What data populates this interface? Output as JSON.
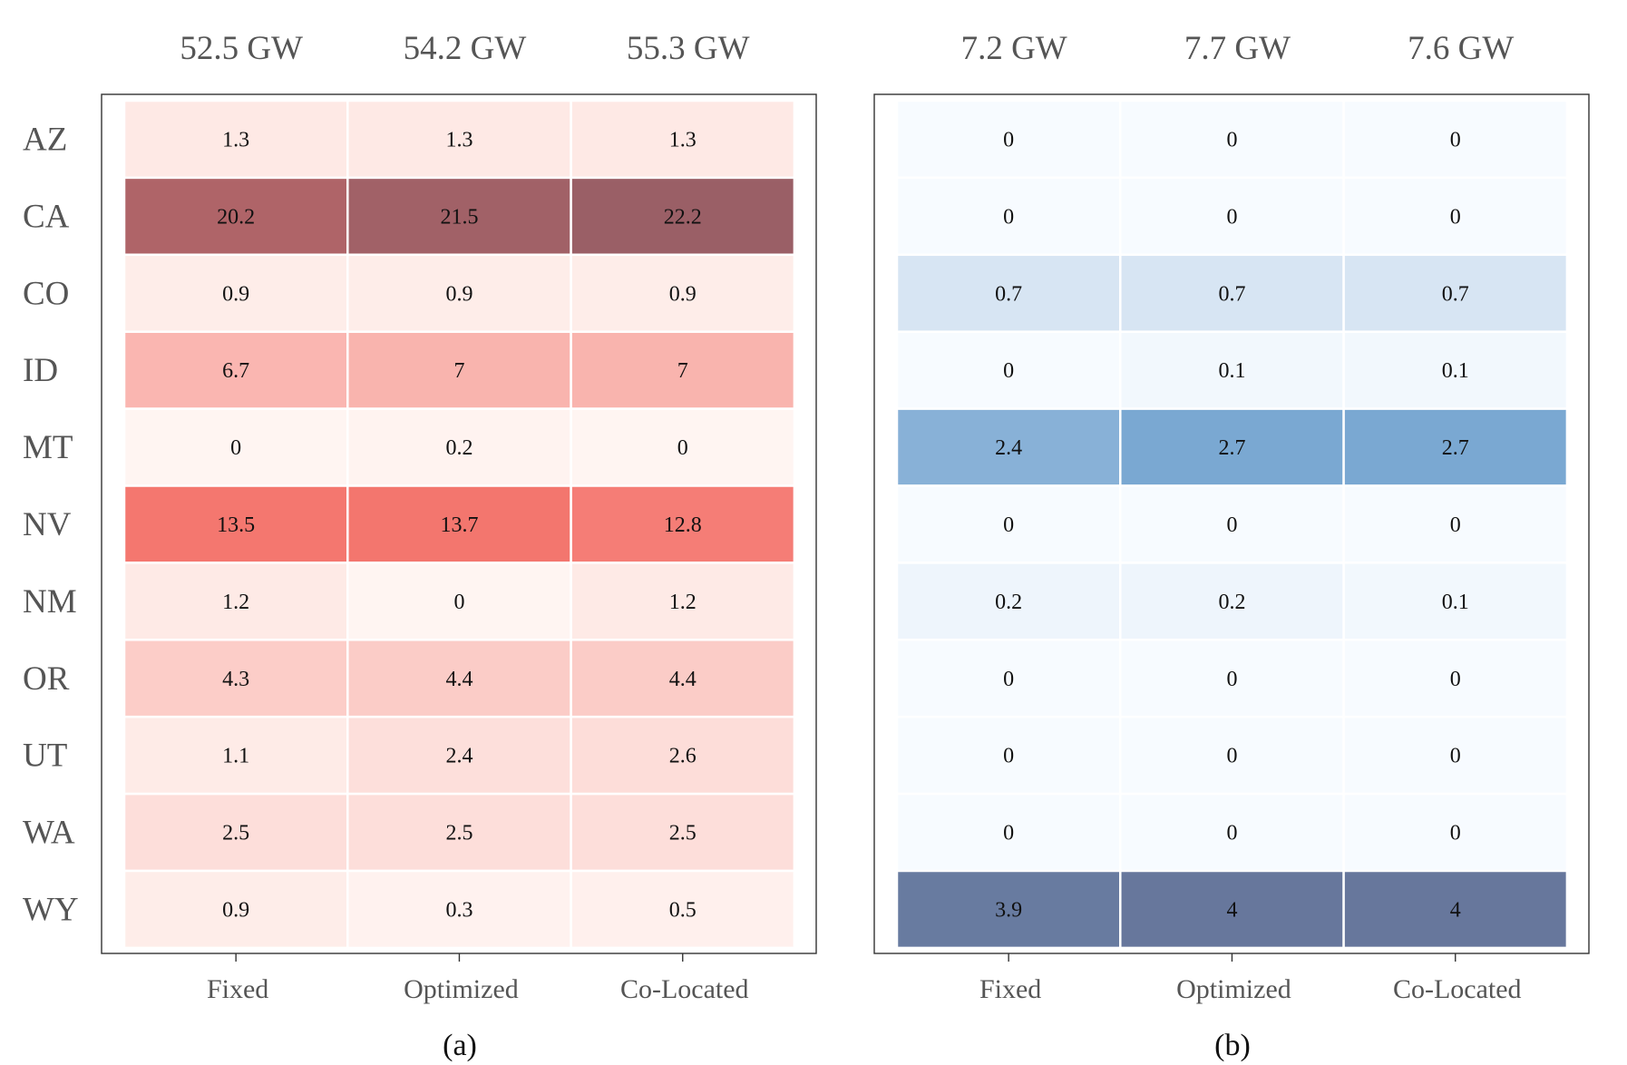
{
  "chart_data": [
    {
      "type": "heatmap",
      "panel": "a",
      "caption": "(a)",
      "color_scale": {
        "low": "#fff5f2",
        "mid": "#f4766e",
        "high": "#9a5f66",
        "mid_value": 13.6
      },
      "columns": [
        "Fixed",
        "Optimized",
        "Co-Located"
      ],
      "column_totals": [
        "52.5 GW",
        "54.2 GW",
        "55.3 GW"
      ],
      "rows": [
        "AZ",
        "CA",
        "CO",
        "ID",
        "MT",
        "NV",
        "NM",
        "OR",
        "UT",
        "WA",
        "WY"
      ],
      "values": [
        [
          1.3,
          1.3,
          1.3
        ],
        [
          20.2,
          21.5,
          22.2
        ],
        [
          0.9,
          0.9,
          0.9
        ],
        [
          6.7,
          7,
          7
        ],
        [
          0,
          0.2,
          0
        ],
        [
          13.5,
          13.7,
          12.8
        ],
        [
          1.2,
          0,
          1.2
        ],
        [
          4.3,
          4.4,
          4.4
        ],
        [
          1.1,
          2.4,
          2.6
        ],
        [
          2.5,
          2.5,
          2.5
        ],
        [
          0.9,
          0.3,
          0.5
        ]
      ]
    },
    {
      "type": "heatmap",
      "panel": "b",
      "caption": "(b)",
      "color_scale": {
        "low": "#f7fbff",
        "mid": "#7aa8d2",
        "high": "#67779c",
        "mid_value": 2.7
      },
      "columns": [
        "Fixed",
        "Optimized",
        "Co-Located"
      ],
      "column_totals": [
        "7.2 GW",
        "7.7 GW",
        "7.6 GW"
      ],
      "rows": [
        "AZ",
        "CA",
        "CO",
        "ID",
        "MT",
        "NV",
        "NM",
        "OR",
        "UT",
        "WA",
        "WY"
      ],
      "values": [
        [
          0,
          0,
          0
        ],
        [
          0,
          0,
          0
        ],
        [
          0.7,
          0.7,
          0.7
        ],
        [
          0,
          0.1,
          0.1
        ],
        [
          2.4,
          2.7,
          2.7
        ],
        [
          0,
          0,
          0
        ],
        [
          0.2,
          0.2,
          0.1
        ],
        [
          0,
          0,
          0
        ],
        [
          0,
          0,
          0
        ],
        [
          0,
          0,
          0
        ],
        [
          3.9,
          4,
          4
        ]
      ]
    }
  ]
}
